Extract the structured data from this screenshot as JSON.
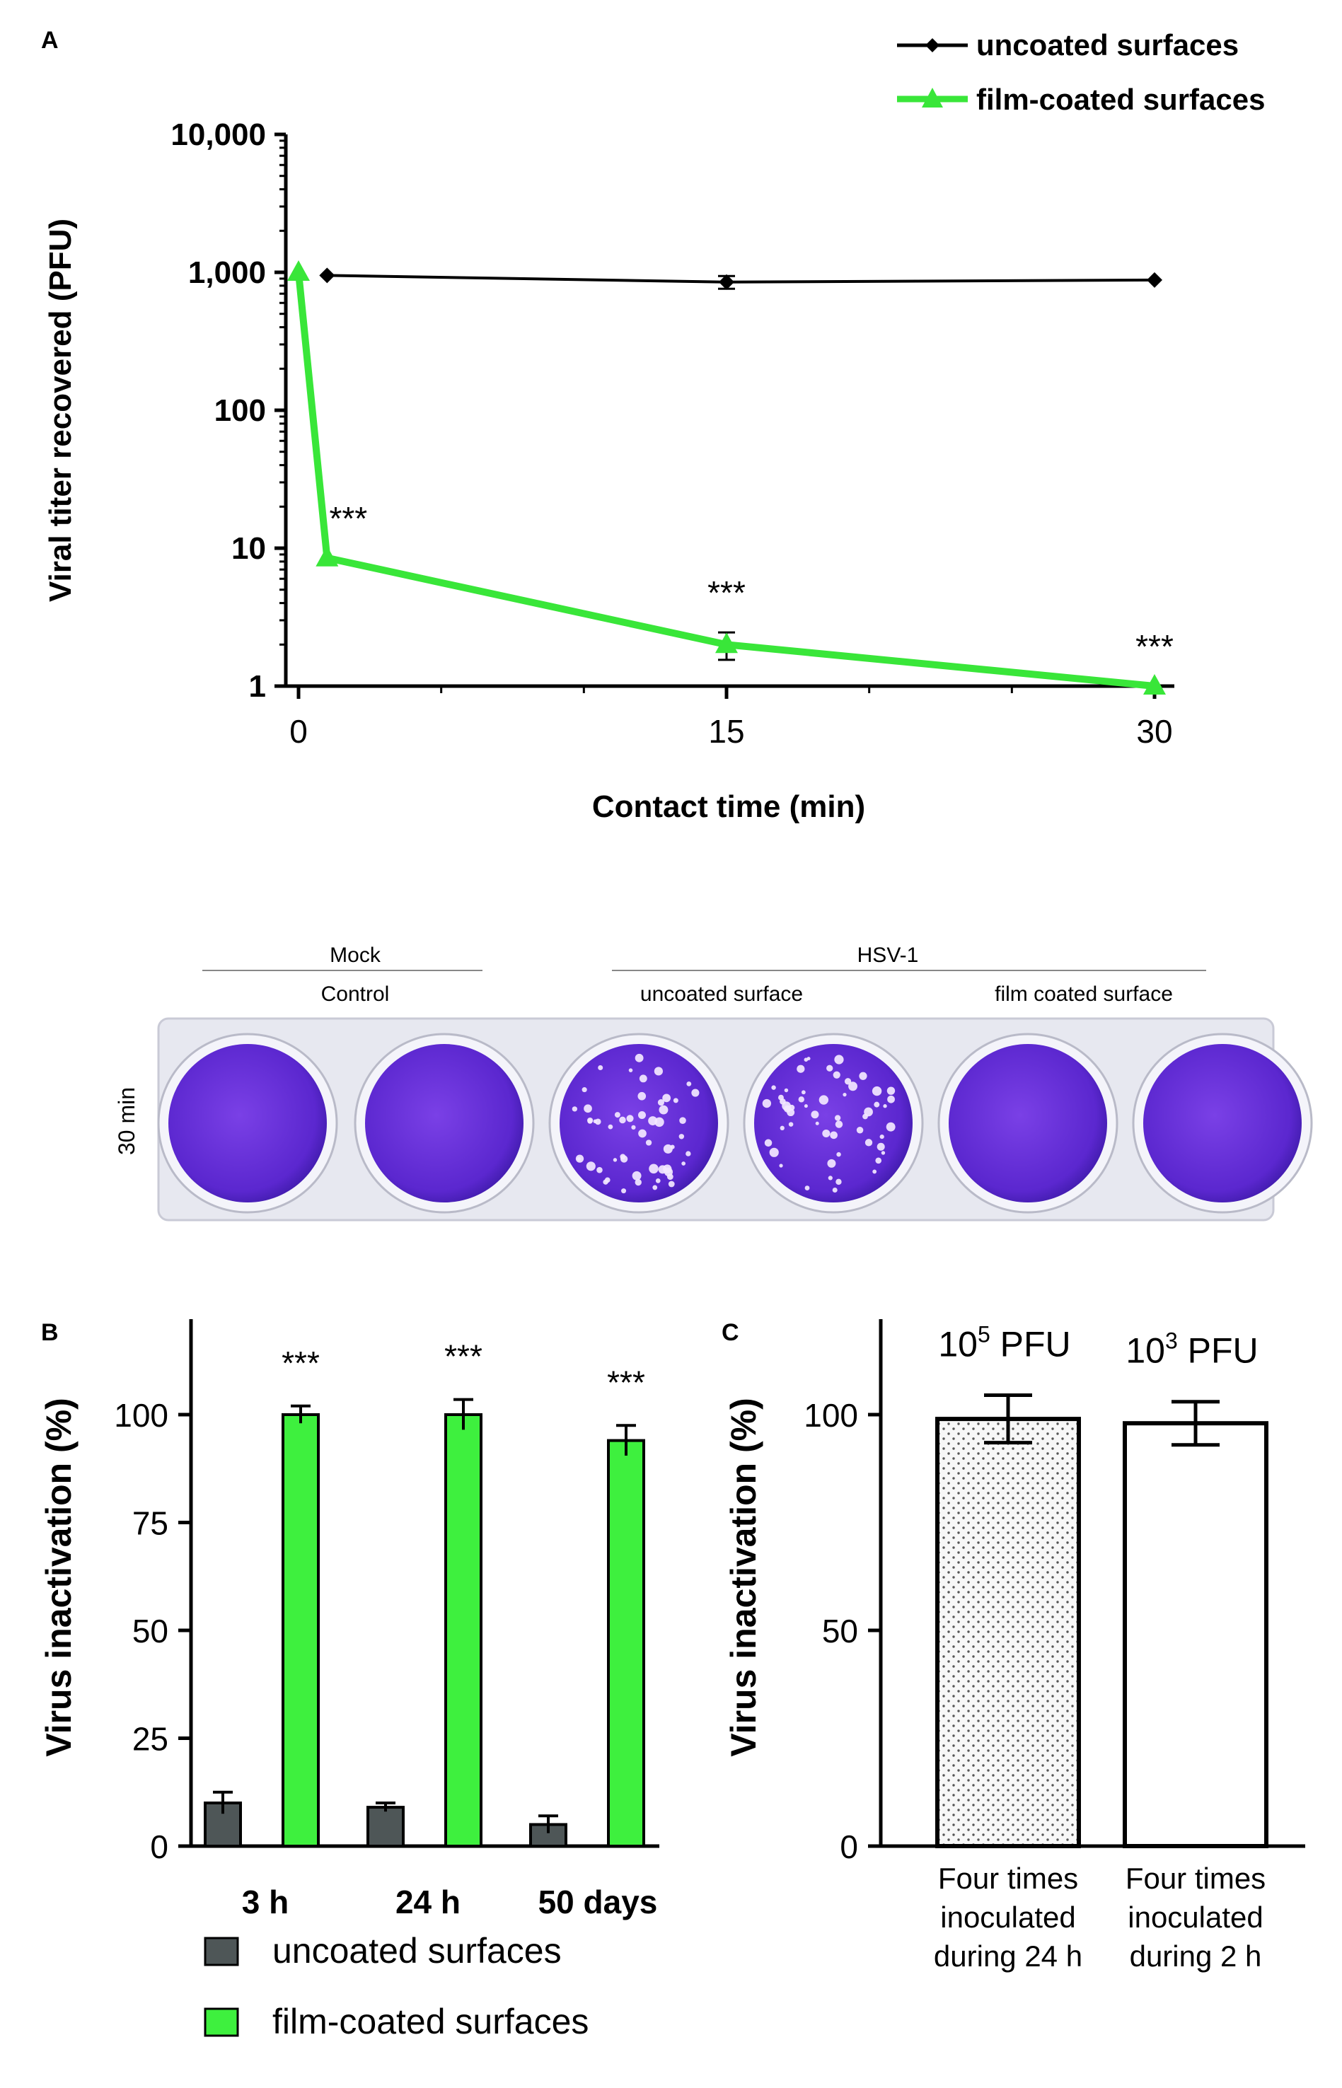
{
  "panel_a": {
    "panel_label": "A",
    "legend": [
      {
        "label": "uncoated surfaces",
        "marker": "diamond",
        "color": "#000000"
      },
      {
        "label": "film-coated surfaces",
        "marker": "triangle",
        "color": "#39e639"
      }
    ],
    "annotations": [
      "***",
      "***",
      "***"
    ],
    "plate": {
      "group_mock": "Mock",
      "group_hsv": "HSV-1",
      "label_control": "Control",
      "label_uncoated": "uncoated surface",
      "label_film": "film coated surface",
      "row_label": "30 min",
      "colors": {
        "well": "#6a2fd8",
        "plate": "#e9eaf3"
      }
    }
  },
  "panel_b": {
    "panel_label": "B",
    "annotations": [
      "***",
      "***",
      "***"
    ]
  },
  "panel_c": {
    "panel_label": "C"
  },
  "chart_data": [
    {
      "type": "line",
      "ylabel": "Viral titer recovered (PFU)",
      "xlabel": "Contact time (min)",
      "yscale": "log",
      "ylim": [
        1,
        10000
      ],
      "xlim": [
        0,
        30
      ],
      "xticks": [
        "0",
        "15",
        "30"
      ],
      "yticks": [
        "1",
        "10",
        "100",
        "1,000",
        "10,000"
      ],
      "series": [
        {
          "name": "uncoated surfaces",
          "color": "#000000",
          "x": [
            1,
            15,
            30
          ],
          "y": [
            950,
            850,
            880
          ],
          "err": [
            0,
            90,
            0
          ]
        },
        {
          "name": "film-coated surfaces",
          "color": "#39e639",
          "x": [
            0,
            1,
            15,
            30
          ],
          "y": [
            1000,
            8.5,
            2,
            1
          ],
          "err": [
            0,
            0,
            0.45,
            0
          ]
        }
      ]
    },
    {
      "type": "bar",
      "ylabel": "Virus inactivation (%)",
      "categories": [
        "3 h",
        "24 h",
        "50 days"
      ],
      "ylim": [
        0,
        120
      ],
      "yticks": [
        "0",
        "25",
        "50",
        "75",
        "100"
      ],
      "series": [
        {
          "name": "uncoated surfaces",
          "color": "#4e5657",
          "values": [
            10,
            9,
            5
          ],
          "err": [
            2.5,
            1,
            2
          ]
        },
        {
          "name": "film-coated surfaces",
          "color": "#3ef03e",
          "values": [
            100,
            100,
            94
          ],
          "err": [
            2,
            3.5,
            3.5
          ]
        }
      ]
    },
    {
      "type": "bar",
      "ylabel": "Virus inactivation (%)",
      "categories": [
        "Four times inoculated during 24 h",
        "Four times inoculated during 2 h"
      ],
      "category_lines": [
        [
          "Four times",
          "inoculated",
          "during 24 h"
        ],
        [
          "Four times",
          "inoculated",
          "during 2 h"
        ]
      ],
      "bar_labels": [
        {
          "base": "10",
          "exp": "5",
          "unit": "PFU"
        },
        {
          "base": "10",
          "exp": "3",
          "unit": "PFU"
        }
      ],
      "ylim": [
        0,
        120
      ],
      "yticks": [
        "0",
        "50",
        "100"
      ],
      "series": [
        {
          "values": [
            99,
            98
          ],
          "err": [
            5.5,
            5
          ]
        }
      ]
    }
  ]
}
